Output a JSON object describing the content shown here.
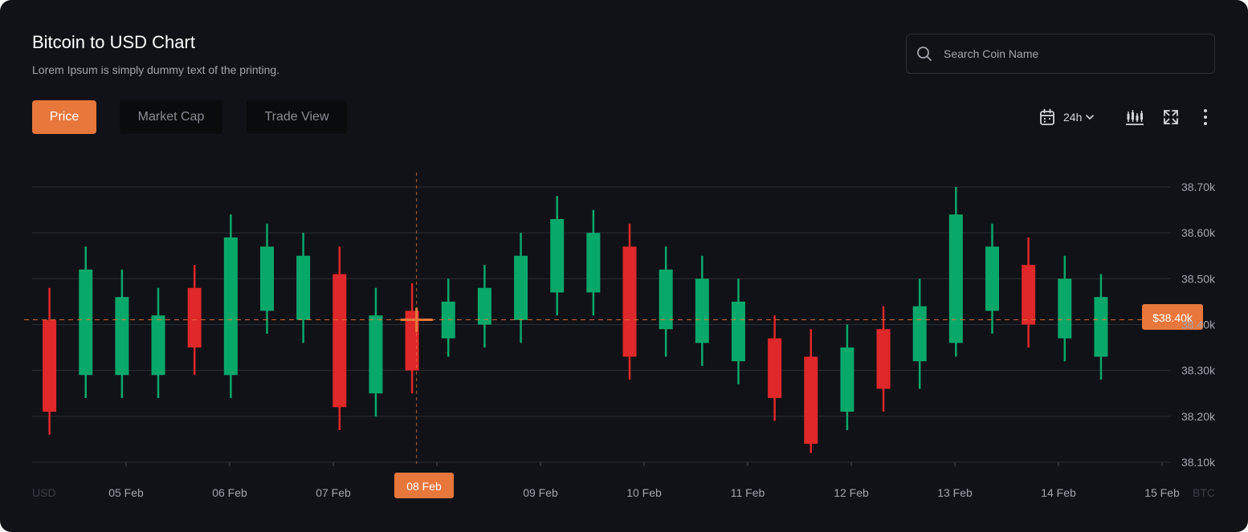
{
  "header": {
    "title": "Bitcoin to USD Chart",
    "subtitle": "Lorem Ipsum is simply dummy text of the printing."
  },
  "search": {
    "placeholder": "Search Coin Name",
    "value": ""
  },
  "tabs": [
    {
      "label": "Price",
      "active": true
    },
    {
      "label": "Market Cap",
      "active": false
    },
    {
      "label": "Trade View",
      "active": false
    }
  ],
  "toolbar": {
    "range_label": "24h",
    "icons": [
      "calendar-icon",
      "chevron-down-icon",
      "candlestick-icon",
      "expand-icon",
      "more-vertical-icon"
    ]
  },
  "colors": {
    "up": "#08a86b",
    "down": "#e02729",
    "accent": "#e8773b",
    "background": "#111217",
    "grid": "#2c2e34"
  },
  "chart_data": {
    "type": "candlestick",
    "y_tick_labels": [
      "38.70k",
      "38.60k",
      "38.50k",
      "38.40k",
      "38.30k",
      "38.20k",
      "38.10k"
    ],
    "y_ticks": [
      38.7,
      38.6,
      38.5,
      38.4,
      38.3,
      38.2,
      38.1
    ],
    "ylim": [
      38.1,
      38.7
    ],
    "x_tick_labels": [
      "05 Feb",
      "06 Feb",
      "07 Feb",
      "08 Feb",
      "09 Feb",
      "10 Feb",
      "11 Feb",
      "12 Feb",
      "13 Feb",
      "14 Feb",
      "15 Feb"
    ],
    "x_ticks": [
      2,
      5,
      8,
      11,
      14,
      17,
      20,
      23,
      26,
      29,
      32
    ],
    "left_axis_label": "USD",
    "right_axis_label": "BTC",
    "highlighted_x_label": "08 Feb",
    "highlighted_x": 10.83,
    "current_price_label": "$38.40k",
    "current_price": 38.4,
    "grid": true,
    "candles": [
      {
        "x": 0.2,
        "open": 38.41,
        "high": 38.48,
        "low": 38.16,
        "close": 38.21
      },
      {
        "x": 1.25,
        "open": 38.29,
        "high": 38.57,
        "low": 38.24,
        "close": 38.52
      },
      {
        "x": 2.3,
        "open": 38.29,
        "high": 38.52,
        "low": 38.24,
        "close": 38.46
      },
      {
        "x": 3.35,
        "open": 38.29,
        "high": 38.48,
        "low": 38.24,
        "close": 38.42
      },
      {
        "x": 4.4,
        "open": 38.48,
        "high": 38.53,
        "low": 38.29,
        "close": 38.35
      },
      {
        "x": 5.45,
        "open": 38.29,
        "high": 38.64,
        "low": 38.24,
        "close": 38.59
      },
      {
        "x": 6.5,
        "open": 38.43,
        "high": 38.62,
        "low": 38.38,
        "close": 38.57
      },
      {
        "x": 7.55,
        "open": 38.41,
        "high": 38.6,
        "low": 38.36,
        "close": 38.55
      },
      {
        "x": 8.6,
        "open": 38.51,
        "high": 38.57,
        "low": 38.17,
        "close": 38.22
      },
      {
        "x": 9.65,
        "open": 38.25,
        "high": 38.48,
        "low": 38.2,
        "close": 38.42
      },
      {
        "x": 10.7,
        "open": 38.43,
        "high": 38.49,
        "low": 38.25,
        "close": 38.3
      },
      {
        "x": 11.75,
        "open": 38.37,
        "high": 38.5,
        "low": 38.33,
        "close": 38.45
      },
      {
        "x": 12.8,
        "open": 38.4,
        "high": 38.53,
        "low": 38.35,
        "close": 38.48
      },
      {
        "x": 13.85,
        "open": 38.41,
        "high": 38.6,
        "low": 38.36,
        "close": 38.55
      },
      {
        "x": 14.9,
        "open": 38.47,
        "high": 38.68,
        "low": 38.42,
        "close": 38.63
      },
      {
        "x": 15.95,
        "open": 38.47,
        "high": 38.65,
        "low": 38.42,
        "close": 38.6
      },
      {
        "x": 17.0,
        "open": 38.57,
        "high": 38.62,
        "low": 38.28,
        "close": 38.33
      },
      {
        "x": 18.05,
        "open": 38.39,
        "high": 38.57,
        "low": 38.33,
        "close": 38.52
      },
      {
        "x": 19.1,
        "open": 38.36,
        "high": 38.55,
        "low": 38.31,
        "close": 38.5
      },
      {
        "x": 20.15,
        "open": 38.32,
        "high": 38.5,
        "low": 38.27,
        "close": 38.45
      },
      {
        "x": 21.2,
        "open": 38.37,
        "high": 38.42,
        "low": 38.19,
        "close": 38.24
      },
      {
        "x": 22.25,
        "open": 38.33,
        "high": 38.39,
        "low": 38.12,
        "close": 38.14
      },
      {
        "x": 23.3,
        "open": 38.21,
        "high": 38.4,
        "low": 38.17,
        "close": 38.35
      },
      {
        "x": 24.35,
        "open": 38.39,
        "high": 38.44,
        "low": 38.21,
        "close": 38.26
      },
      {
        "x": 25.4,
        "open": 38.32,
        "high": 38.5,
        "low": 38.26,
        "close": 38.44
      },
      {
        "x": 26.45,
        "open": 38.36,
        "high": 38.7,
        "low": 38.33,
        "close": 38.64
      },
      {
        "x": 27.5,
        "open": 38.43,
        "high": 38.62,
        "low": 38.38,
        "close": 38.57
      },
      {
        "x": 28.55,
        "open": 38.53,
        "high": 38.59,
        "low": 38.35,
        "close": 38.4
      },
      {
        "x": 29.6,
        "open": 38.37,
        "high": 38.55,
        "low": 38.32,
        "close": 38.5
      },
      {
        "x": 30.65,
        "open": 38.33,
        "high": 38.51,
        "low": 38.28,
        "close": 38.46
      }
    ]
  }
}
